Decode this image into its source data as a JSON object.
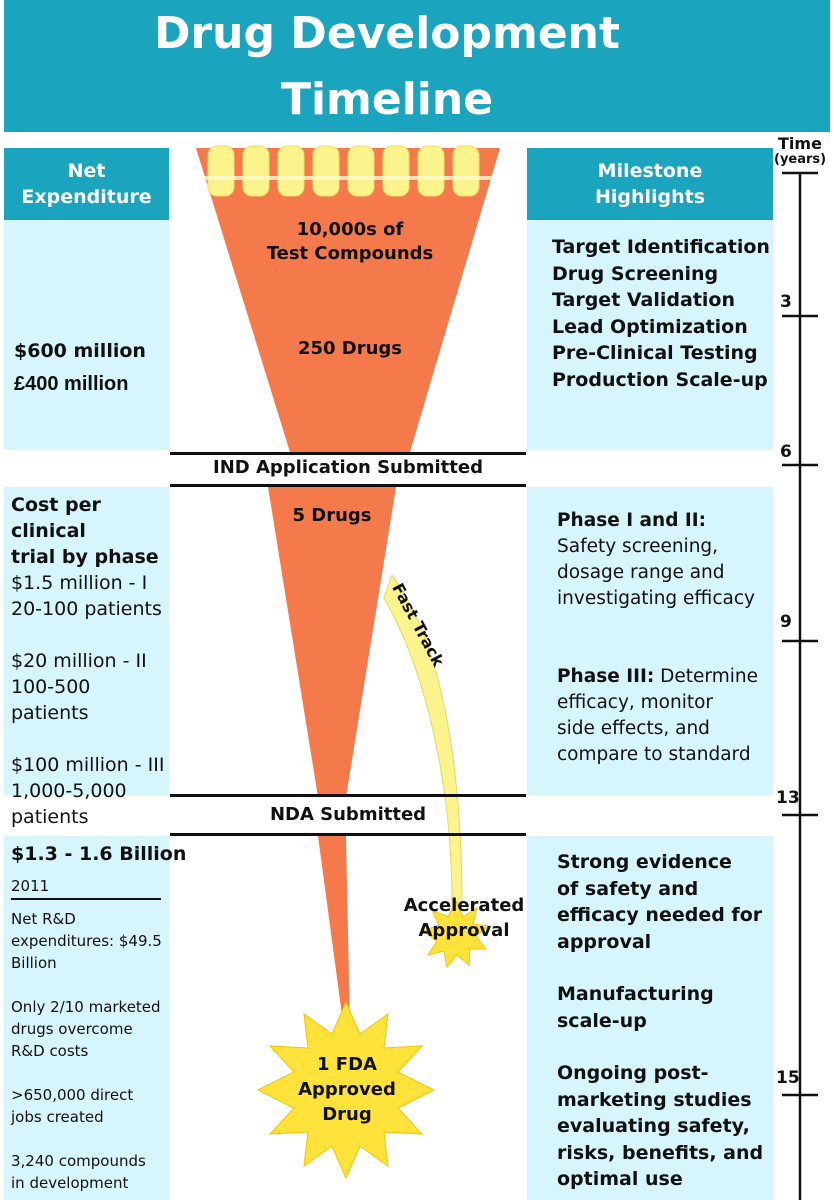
{
  "header": {
    "title_line1": "Drug Development",
    "title_line2": "Timeline"
  },
  "time_axis": {
    "label": "Time",
    "unit": "(years)",
    "ticks": [
      "3",
      "6",
      "9",
      "13",
      "15"
    ]
  },
  "left_header": {
    "line1": "Net",
    "line2": "Expenditure"
  },
  "right_header": {
    "line1": "Milestone",
    "line2": "Highlights"
  },
  "stage1": {
    "expenditure": [
      "$600 million",
      "£400 million"
    ],
    "funnel_top": [
      "10,000s of",
      "Test Compounds"
    ],
    "funnel_mid": "250 Drugs",
    "milestones": [
      "Target Identification",
      "Drug Screening",
      "Target Validation",
      "Lead Optimization",
      "Pre-Clinical Testing",
      "Production Scale-up"
    ]
  },
  "separator1": "IND Application Submitted",
  "stage2": {
    "cost_title": [
      "Cost per clinical",
      "trial by phase"
    ],
    "phase1": [
      "$1.5 million - I",
      "20-100 patients"
    ],
    "phase2": [
      "$20 million - II",
      "100-500 patients"
    ],
    "phase3": [
      "$100 million - III",
      "1,000-5,000",
      "patients"
    ],
    "funnel_label": "5 Drugs",
    "fast_track": "Fast Track",
    "phase12_title": "Phase I and II:",
    "phase12_text": [
      "Safety screening,",
      "dosage range and",
      "investigating efficacy"
    ],
    "phase3_title": "Phase III:",
    "phase3_first": "Determine",
    "phase3_text": [
      "efficacy, monitor",
      "side effects, and",
      "compare to standard"
    ]
  },
  "separator2": "NDA Submitted",
  "stage3": {
    "cost": "$1.3 - 1.6 Billion",
    "year": "2011",
    "notes": [
      [
        "Net R&D",
        "expenditures: $49.5",
        "Billion"
      ],
      [
        "Only 2/10 marketed",
        "drugs overcome",
        "R&D costs"
      ],
      [
        ">650,000 direct",
        "jobs created"
      ],
      [
        "3,240 compounds",
        "in development"
      ]
    ],
    "accelerated": [
      "Accelerated",
      "Approval"
    ],
    "approved": [
      "1 FDA",
      "Approved",
      "Drug"
    ],
    "milestones": [
      [
        "Strong evidence",
        "of safety and",
        "efficacy needed for",
        "approval"
      ],
      [
        "Manufacturing",
        "scale-up"
      ],
      [
        "Ongoing post-",
        "marketing studies",
        "evaluating safety,",
        "risks, benefits, and",
        "optimal use"
      ]
    ]
  },
  "colors": {
    "header_teal": "#1aa4bd",
    "panel_light": "#d6f5fc",
    "funnel_orange": "#f47a4b",
    "fast_track_yellow": "#fbf48c",
    "star_yellow": "#ffe23a"
  }
}
